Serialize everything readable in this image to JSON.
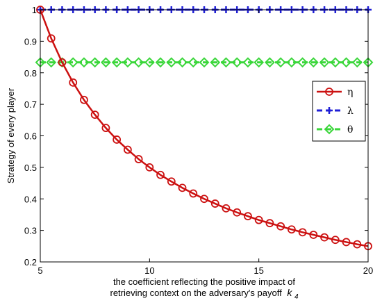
{
  "chart_data": {
    "type": "line",
    "xlabel_line1": "the coefficient reflecting the positive impact of",
    "xlabel_line2": "retrieving context on the adversary's payoff",
    "xlabel_var": "k",
    "xlabel_sub": "4",
    "ylabel": "Strategy of every player",
    "xlim": [
      5,
      20
    ],
    "ylim": [
      0.2,
      1.0
    ],
    "xticks": [
      "5",
      "10",
      "15",
      "20"
    ],
    "yticks": [
      "0.2",
      "0.3",
      "0.4",
      "0.5",
      "0.6",
      "0.7",
      "0.8",
      "0.9",
      "1"
    ],
    "grid": false,
    "legend_position": "right",
    "x": [
      5.0,
      5.5,
      6.0,
      6.5,
      7.0,
      7.5,
      8.0,
      8.5,
      9.0,
      9.5,
      10.0,
      10.5,
      11.0,
      11.5,
      12.0,
      12.5,
      13.0,
      13.5,
      14.0,
      14.5,
      15.0,
      15.5,
      16.0,
      16.5,
      17.0,
      17.5,
      18.0,
      18.5,
      19.0,
      19.5,
      20.0
    ],
    "series": [
      {
        "name": "η",
        "color": "#cc1111",
        "marker": "circle",
        "line_style": "solid",
        "values": [
          1.0,
          0.909,
          0.833,
          0.769,
          0.714,
          0.667,
          0.625,
          0.588,
          0.556,
          0.526,
          0.5,
          0.476,
          0.455,
          0.435,
          0.417,
          0.4,
          0.385,
          0.37,
          0.357,
          0.345,
          0.333,
          0.323,
          0.313,
          0.303,
          0.294,
          0.286,
          0.278,
          0.27,
          0.263,
          0.256,
          0.25
        ]
      },
      {
        "name": "λ",
        "color": "#1f1fd6",
        "marker": "plus",
        "line_style": "dashed",
        "values": [
          1.0,
          1.0,
          1.0,
          1.0,
          1.0,
          1.0,
          1.0,
          1.0,
          1.0,
          1.0,
          1.0,
          1.0,
          1.0,
          1.0,
          1.0,
          1.0,
          1.0,
          1.0,
          1.0,
          1.0,
          1.0,
          1.0,
          1.0,
          1.0,
          1.0,
          1.0,
          1.0,
          1.0,
          1.0,
          1.0,
          1.0
        ]
      },
      {
        "name": "θ",
        "color": "#3ad63a",
        "marker": "diamond",
        "line_style": "dashed",
        "values": [
          0.833,
          0.833,
          0.833,
          0.833,
          0.833,
          0.833,
          0.833,
          0.833,
          0.833,
          0.833,
          0.833,
          0.833,
          0.833,
          0.833,
          0.833,
          0.833,
          0.833,
          0.833,
          0.833,
          0.833,
          0.833,
          0.833,
          0.833,
          0.833,
          0.833,
          0.833,
          0.833,
          0.833,
          0.833,
          0.833,
          0.833
        ]
      }
    ]
  }
}
